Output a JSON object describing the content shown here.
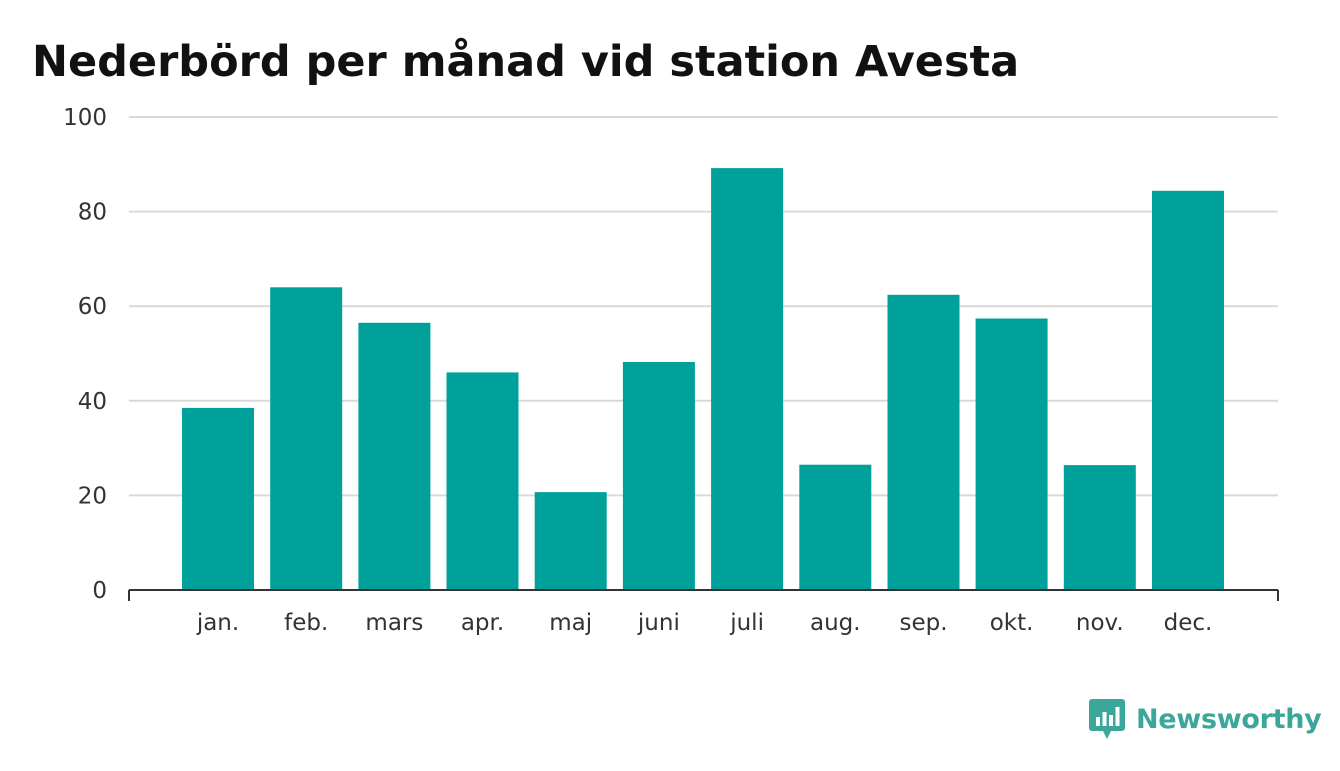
{
  "chart_data": {
    "type": "bar",
    "title": "Nederbörd per månad vid station Avesta",
    "xlabel": "",
    "ylabel": "",
    "categories": [
      "jan.",
      "feb.",
      "mars",
      "apr.",
      "maj",
      "juni",
      "juli",
      "aug.",
      "sep.",
      "okt.",
      "nov.",
      "dec."
    ],
    "values": [
      38.5,
      64.0,
      56.5,
      46.0,
      20.7,
      48.2,
      89.2,
      26.5,
      62.4,
      57.4,
      26.4,
      84.4
    ],
    "ylim": [
      0,
      100
    ],
    "yticks": [
      0,
      20,
      40,
      60,
      80,
      100
    ],
    "grid": true,
    "legend": "none",
    "bar_color": "#00a19a",
    "grid_color": "#d9d9d9",
    "axis_color": "#333333"
  },
  "branding": {
    "name": "Newsworthy",
    "icon": "newsworthy-logo-icon",
    "color": "#3aa79a"
  }
}
